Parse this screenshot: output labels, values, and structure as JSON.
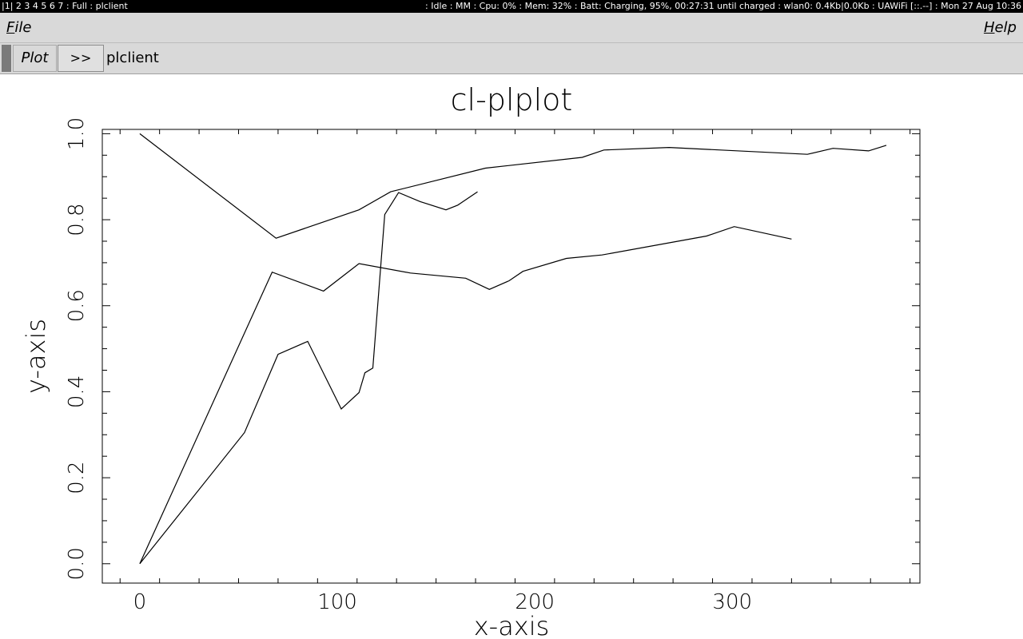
{
  "statusbar": {
    "left": "|1| 2 3 4 5 6 7 : Full : plclient",
    "right": ": Idle : MM : Cpu: 0% : Mem: 32% : Batt: Charging, 95%, 00:27:31 until charged : wlan0: 0.4Kb|0.0Kb : UAWiFi [::.--] : Mon 27 Aug 10:36"
  },
  "menubar": {
    "file_label": "File",
    "help_label": "Help"
  },
  "toolbar": {
    "plot_label": "Plot",
    "more_label": ">>",
    "client_label": "plclient"
  },
  "chart_data": {
    "type": "line",
    "title": "cl-plplot",
    "xlabel": "x-axis",
    "ylabel": "y-axis",
    "xlim": [
      -19,
      395
    ],
    "ylim": [
      -0.045,
      1.01
    ],
    "xticks": [
      0,
      100,
      200,
      300
    ],
    "xtick_labels": [
      "0",
      "100",
      "200",
      "300"
    ],
    "yticks": [
      0.0,
      0.2,
      0.4,
      0.6,
      0.8,
      1.0
    ],
    "ytick_labels": [
      "0.0",
      "0.2",
      "0.4",
      "0.6",
      "0.8",
      "1.0"
    ],
    "grid": false,
    "series": [
      {
        "x": [
          0,
          69,
          111,
          127,
          175,
          224,
          235,
          268,
          338,
          351,
          369,
          378
        ],
        "y": [
          1.0,
          0.757,
          0.823,
          0.865,
          0.92,
          0.945,
          0.962,
          0.968,
          0.952,
          0.966,
          0.96,
          0.973
        ]
      },
      {
        "x": [
          0,
          67,
          93,
          111,
          137,
          165,
          177,
          187,
          194,
          216,
          234,
          287,
          301,
          330
        ],
        "y": [
          0.0,
          0.678,
          0.634,
          0.698,
          0.676,
          0.664,
          0.638,
          0.658,
          0.68,
          0.71,
          0.718,
          0.762,
          0.784,
          0.755
        ]
      },
      {
        "x": [
          0,
          53,
          70,
          85,
          102,
          111,
          114,
          118,
          124,
          131,
          142,
          155,
          161,
          171
        ],
        "y": [
          0.0,
          0.305,
          0.487,
          0.517,
          0.36,
          0.398,
          0.444,
          0.455,
          0.812,
          0.863,
          0.842,
          0.823,
          0.834,
          0.865
        ]
      }
    ]
  }
}
